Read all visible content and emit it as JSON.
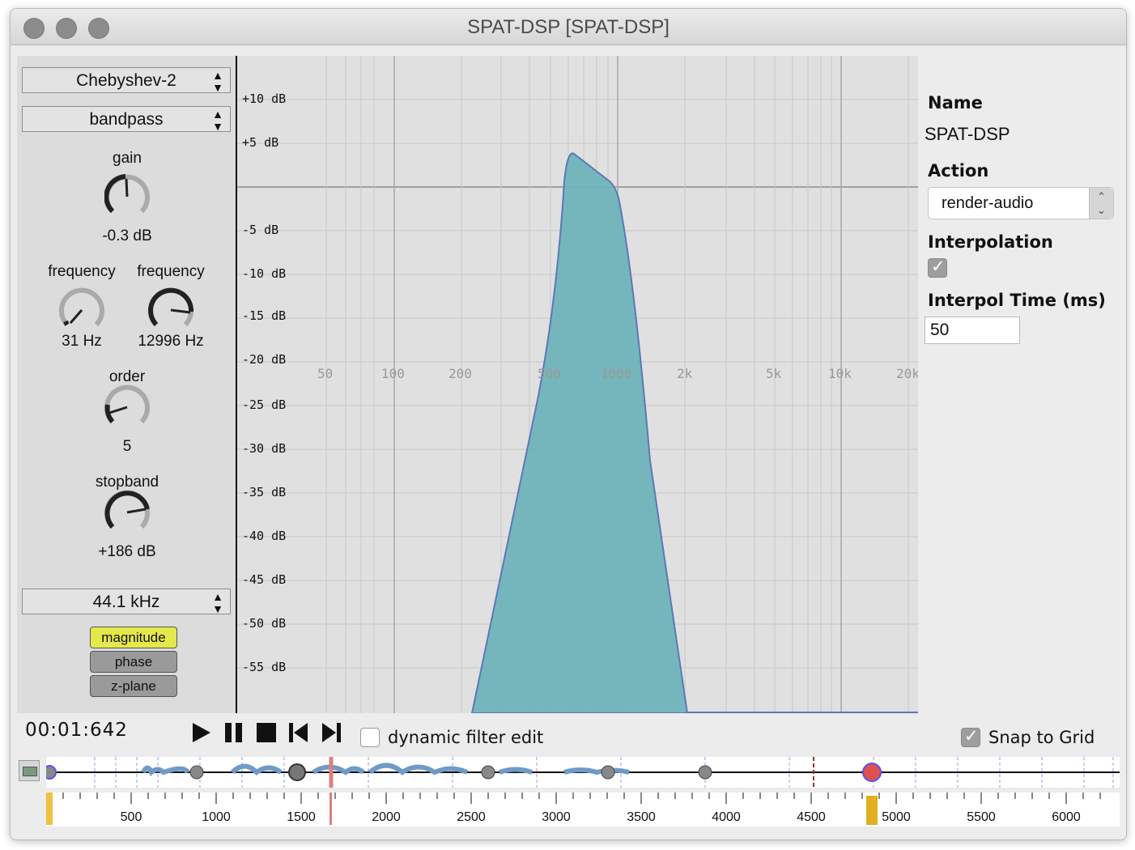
{
  "window": {
    "title": "SPAT-DSP [SPAT-DSP]"
  },
  "filter": {
    "type": "Chebyshev-2",
    "mode": "bandpass",
    "gain_label": "gain",
    "gain_value": "-0.3 dB",
    "freq1_label": "frequency",
    "freq1_value": "31 Hz",
    "freq2_label": "frequency",
    "freq2_value": "12996 Hz",
    "order_label": "order",
    "order_value": "5",
    "stopband_label": "stopband",
    "stopband_value": "+186 dB",
    "samplerate": "44.1 kHz",
    "view_modes": [
      "magnitude",
      "phase",
      "z-plane"
    ],
    "active_view": "magnitude"
  },
  "graph": {
    "y_labels": [
      "+10 dB",
      "+5 dB",
      "-5 dB",
      "-10 dB",
      "-15 dB",
      "-20 dB",
      "-25 dB",
      "-30 dB",
      "-35 dB",
      "-40 dB",
      "-45 dB",
      "-50 dB",
      "-55 dB"
    ],
    "x_labels": [
      "50",
      "100",
      "200",
      "500",
      "1000",
      "2k",
      "5k",
      "10k",
      "20k"
    ],
    "fill_color": "#6fb3b9",
    "stroke_color": "#5c78b8"
  },
  "properties": {
    "name_label": "Name",
    "name_value": "SPAT-DSP",
    "action_label": "Action",
    "action_value": "render-audio",
    "interp_label": "Interpolation",
    "interp_checked": true,
    "interp_time_label": "Interpol Time (ms)",
    "interp_time_value": "50"
  },
  "transport": {
    "time": "00:01:642",
    "dynamic_edit_label": "dynamic filter edit",
    "dynamic_edit_checked": false,
    "snap_label": "Snap to Grid",
    "snap_checked": true
  },
  "ruler": {
    "labels": [
      "500",
      "1000",
      "1500",
      "2000",
      "2500",
      "3000",
      "3500",
      "4000",
      "4500",
      "5000",
      "5500",
      "6000"
    ]
  }
}
